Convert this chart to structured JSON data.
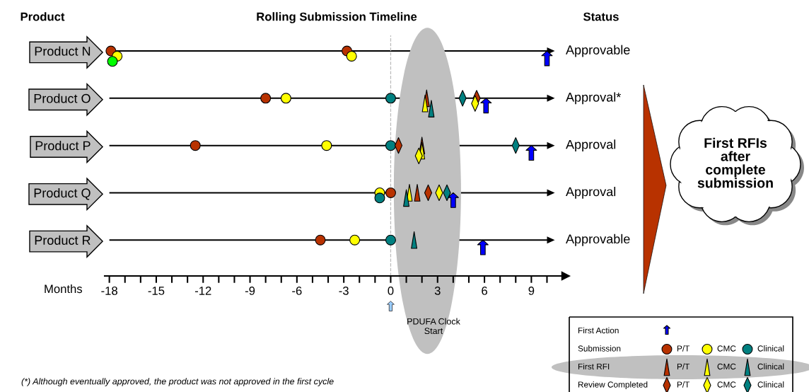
{
  "chart_data": {
    "type": "scatter",
    "orientation": "horizontal",
    "title": "Rolling Submission Timeline",
    "ylabel": "Product",
    "y2label": "Status",
    "xlabel": "Months",
    "categories": [
      "Product N",
      "Product O",
      "Product P",
      "Product Q",
      "Product R"
    ],
    "y2_categories": [
      "Approvable",
      "Approval*",
      "Approval",
      "Approval",
      "Approvable"
    ],
    "xlim": [
      -18.3,
      11.2
    ],
    "xticks": [
      -18,
      {
        "value": -17,
        "label": null
      },
      {
        "value": -16,
        "label": null
      },
      -15,
      {
        "value": -14,
        "label": null
      },
      {
        "value": -13,
        "label": null
      },
      -12,
      {
        "value": -11,
        "label": null
      },
      {
        "value": -10,
        "label": null
      },
      -9,
      {
        "value": -8,
        "label": null
      },
      {
        "value": -7,
        "label": null
      },
      -6,
      {
        "value": -5,
        "label": null
      },
      {
        "value": -4,
        "label": null
      },
      -3,
      {
        "value": -2,
        "label": null
      },
      {
        "value": -1,
        "label": null
      },
      0,
      {
        "value": 1,
        "label": null
      },
      {
        "value": 2,
        "label": null
      },
      3,
      {
        "value": 4,
        "label": null
      },
      {
        "value": 5,
        "label": null
      },
      6,
      {
        "value": 7,
        "label": null
      },
      {
        "value": 8,
        "label": null
      },
      9,
      {
        "value": 10,
        "label": null
      }
    ],
    "series": [
      {
        "color": "#0000ff",
        "values": [
          10.0,
          6.1,
          9.0,
          4.0,
          5.9
        ]
      },
      {
        "name": "P/T",
        "color": "#b83200",
        "marker": "circle",
        "values": [
          -17.9,
          -8.0,
          -12.5,
          0,
          -4.5
        ]
      },
      {
        "name": "CMC",
        "color": "#ffff00",
        "marker": "circle",
        "values": [
          -17.5,
          -6.7,
          -4.1,
          -0.7,
          -2.3
        ]
      },
      {
        "name": "Clinical",
        "color": "#008080",
        "marker": "circle",
        "values": [
          null,
          0,
          0,
          -0.7,
          0
        ]
      },
      {
        "color": "#00ff00",
        "marker": "circle",
        "values": [
          -17.8,
          null,
          null,
          null,
          null
        ]
      },
      {
        "color": "#b83200",
        "marker": "circle",
        "values": [
          -2.8,
          null,
          null,
          null,
          null
        ]
      },
      {
        "color": "#ffff00",
        "marker": "circle",
        "values": [
          -2.5,
          null,
          null,
          null,
          null
        ]
      },
      {
        "name": "P/T",
        "color": "#b83200",
        "marker": "triangle",
        "values": [
          null,
          2.3,
          2.0,
          1.7,
          null
        ]
      },
      {
        "name": "CMC",
        "color": "#ffff00",
        "marker": "triangle",
        "values": [
          null,
          2.2,
          2.0,
          1.2,
          null
        ]
      },
      {
        "name": "Clinical",
        "color": "#008080",
        "marker": "triangle",
        "values": [
          null,
          2.6,
          null,
          1.0,
          1.5
        ]
      },
      {
        "name": "P/T",
        "color": "#b83200",
        "marker": "diamond",
        "values": [
          null,
          5.5,
          0.5,
          2.4,
          null
        ]
      },
      {
        "name": "CMC",
        "color": "#ffff00",
        "marker": "diamond",
        "values": [
          null,
          5.4,
          1.8,
          3.1,
          null
        ]
      },
      {
        "name": "Clinical",
        "color": "#008080",
        "marker": "diamond",
        "values": [
          null,
          4.6,
          8.0,
          3.6,
          null
        ]
      }
    ],
    "ref_lines": [
      {
        "axis": "x",
        "value": 0,
        "color": "#bbbbbb",
        "line_style": "dashed"
      }
    ],
    "annotations": [
      "First RFIs\nafter\ncomplete\nsubmission",
      "(*) Although eventually approved, the product was not approved in the first cycle",
      "PDUFA Clock\nStart",
      "First Action",
      "Submission",
      "First RFI",
      "Review Completed"
    ],
    "legend": "bottom right"
  }
}
